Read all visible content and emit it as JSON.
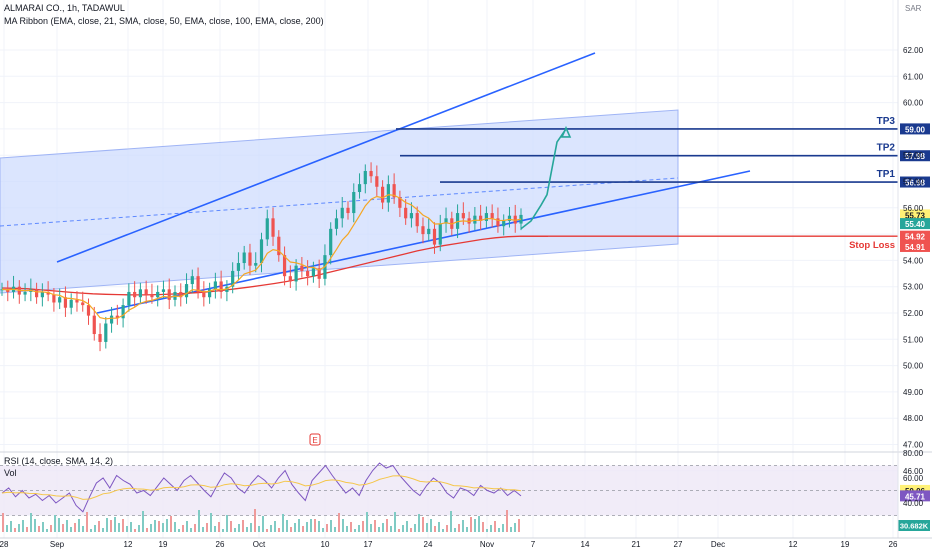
{
  "header": {
    "symbol_line": "ALMARAI CO., 1h, TADAWUL",
    "indicator_line": "MA Ribbon (EMA, close, 21, SMA, close, 50, EMA, close, 100, EMA, close, 200)"
  },
  "rsi_panel": {
    "title": "RSI (14, close, SMA, 14, 2)",
    "vol_label": "Vol"
  },
  "colors": {
    "up": "#26a69a",
    "down": "#ef5350",
    "line_blue": "#2962ff",
    "level_navy": "#1a3a8f",
    "channel_fill": "#cfdcfd",
    "arrow": "#26a69a",
    "ema21": "#f5a623",
    "ema200": "#e53935",
    "rsi": "#7e57c2"
  },
  "chart_data": [
    {
      "type": "candlestick",
      "currency": "SAR",
      "y_ticks": [
        "62.00",
        "61.00",
        "60.00",
        "59.00",
        "58.00",
        "57.00",
        "56.00",
        "55.00",
        "54.00",
        "53.00",
        "52.00",
        "51.00",
        "50.00",
        "49.00",
        "48.00",
        "47.00",
        "46.00"
      ],
      "x_ticks": [
        "28",
        "Sep",
        "12",
        "19",
        "26",
        "Oct",
        "10",
        "17",
        "24",
        "Nov",
        "7",
        "14",
        "21",
        "27",
        "Dec",
        "12",
        "19",
        "26"
      ],
      "ylim": [
        45.8,
        62.5
      ],
      "levels": [
        {
          "name": "TP3",
          "value": 59.0,
          "label": "59.00"
        },
        {
          "name": "TP2",
          "value": 57.98,
          "label": "57.98"
        },
        {
          "name": "TP1",
          "value": 56.98,
          "label": "56.98"
        },
        {
          "name": "Stop Loss",
          "value": 54.92,
          "label": "54.92"
        }
      ],
      "price_badges": [
        {
          "label": "55.73",
          "value": 55.73,
          "color": "#fff176"
        },
        {
          "label": "55.40",
          "value": 55.4,
          "color": "#26a69a"
        },
        {
          "label": "54.92",
          "value": 54.92,
          "color": "#ef5350"
        },
        {
          "label": "54.91",
          "value": 54.91,
          "color": "#ef5350"
        }
      ],
      "close_series": [
        52.9,
        52.8,
        53.0,
        52.7,
        52.8,
        52.9,
        52.6,
        52.8,
        52.7,
        52.4,
        52.6,
        52.2,
        52.5,
        52.4,
        52.3,
        51.9,
        51.2,
        50.9,
        51.6,
        51.9,
        51.8,
        52.3,
        52.8,
        52.6,
        52.9,
        52.7,
        52.6,
        52.8,
        52.9,
        52.5,
        52.8,
        52.6,
        53.1,
        53.4,
        52.8,
        52.6,
        52.9,
        53.2,
        52.8,
        53.0,
        53.6,
        53.9,
        54.3,
        53.8,
        53.9,
        54.8,
        55.6,
        54.9,
        54.2,
        53.4,
        53.2,
        53.8,
        53.6,
        53.4,
        53.7,
        53.3,
        54.2,
        55.2,
        55.6,
        56.0,
        55.8,
        56.6,
        56.9,
        57.4,
        57.2,
        56.8,
        56.2,
        56.9,
        56.4,
        56.0,
        55.6,
        55.8,
        55.3,
        55.0,
        55.2,
        54.6,
        55.4,
        55.6,
        55.2,
        55.8,
        55.6,
        55.4,
        55.7,
        55.5,
        55.8,
        55.6,
        55.3,
        55.5,
        55.7,
        55.4,
        55.73
      ],
      "ema200_series": [
        52.95,
        52.94,
        52.92,
        52.88,
        52.84,
        52.8,
        52.76,
        52.73,
        52.71,
        52.7,
        52.69,
        52.69,
        52.7,
        52.72,
        52.74,
        52.77,
        52.81,
        52.86,
        52.92,
        52.98,
        53.05,
        53.12,
        53.2,
        53.3,
        53.4,
        53.52,
        53.64,
        53.76,
        53.88,
        54.0,
        54.12,
        54.24,
        54.36,
        54.46,
        54.56,
        54.64,
        54.72,
        54.8,
        54.86,
        54.9,
        54.92
      ],
      "projection_path": [
        55.2,
        55.5,
        56.1,
        56.5,
        58.5,
        59.0
      ]
    },
    {
      "type": "line",
      "name": "RSI",
      "y_ticks": [
        "80.00",
        "60.00",
        "50.06",
        "45.71",
        "40.00"
      ],
      "ylim": [
        25,
        80
      ],
      "levels": [
        70,
        50,
        30
      ],
      "values": [
        48,
        52,
        45,
        50,
        44,
        47,
        42,
        46,
        40,
        44,
        48,
        38,
        33,
        45,
        56,
        60,
        52,
        62,
        58,
        55,
        48,
        50,
        46,
        53,
        60,
        55,
        50,
        58,
        62,
        56,
        50,
        45,
        55,
        64,
        60,
        52,
        48,
        56,
        62,
        58,
        52,
        60,
        66,
        55,
        48,
        42,
        58,
        64,
        70,
        62,
        55,
        48,
        52,
        46,
        58,
        66,
        72,
        68,
        70,
        62,
        56,
        50,
        46,
        54,
        60,
        56,
        48,
        44,
        52,
        50,
        46,
        54,
        50,
        48,
        52,
        46,
        50,
        45.71
      ],
      "vol_badge": "30.682K"
    }
  ]
}
